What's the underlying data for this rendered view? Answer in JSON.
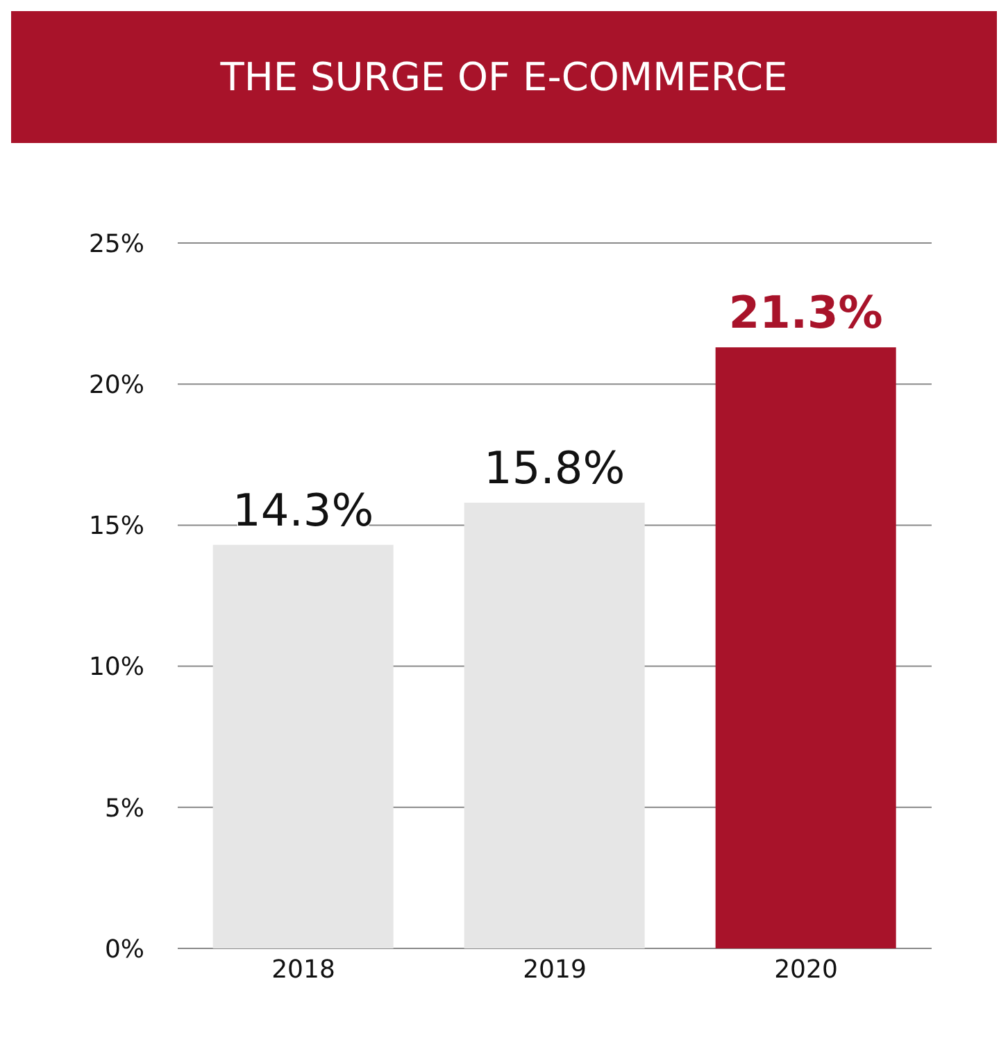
{
  "chart_data": {
    "type": "bar",
    "title": "THE SURGE OF E-COMMERCE",
    "categories": [
      "2018",
      "2019",
      "2020"
    ],
    "values": [
      14.3,
      15.8,
      21.3
    ],
    "colors": [
      "#e6e6e6",
      "#e6e6e6",
      "#a8132a"
    ],
    "value_labels": [
      "14.3%",
      "15.8%",
      "21.3%"
    ],
    "ylim": [
      0,
      25
    ],
    "yticks": [
      {
        "value": 0,
        "label": "0%"
      },
      {
        "value": 5,
        "label": "5%"
      },
      {
        "value": 10,
        "label": "10%"
      },
      {
        "value": 15,
        "label": "15%"
      },
      {
        "value": 20,
        "label": "20%"
      },
      {
        "value": 25,
        "label": "25%"
      }
    ],
    "grid": "y"
  }
}
